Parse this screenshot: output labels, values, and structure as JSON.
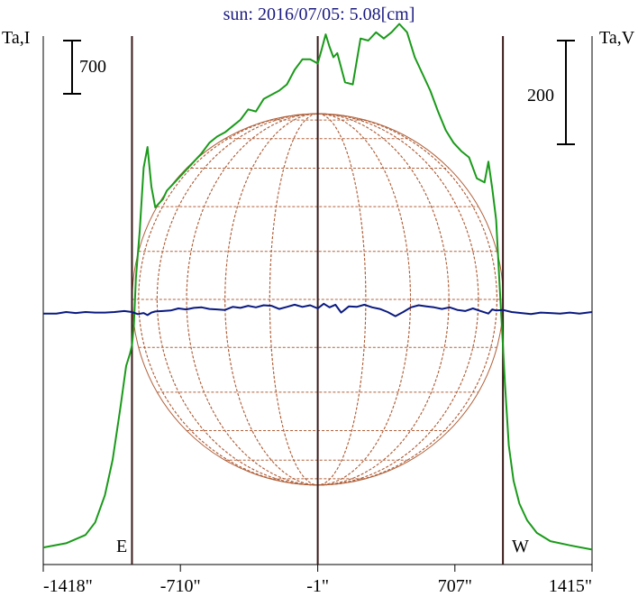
{
  "title": "sun: 2016/07/05: 5.08[cm]",
  "left_axis_label": "Ta,I",
  "right_axis_label": "Ta,V",
  "scale_left_label": "700",
  "scale_right_label": "200",
  "east_label": "E",
  "west_label": "W",
  "colors": {
    "intensity": "#1a9a1a",
    "polarization": "#0a1a80",
    "disk": "#b0603a",
    "limb_lines": "#3a1a1a",
    "title": "#1a1a80"
  },
  "chart_data": {
    "type": "line",
    "xlabel": "",
    "ylabel": "",
    "xlim": [
      -1418,
      1415
    ],
    "x_ticks": [
      {
        "value": -1418,
        "label": "-1418\""
      },
      {
        "value": -710,
        "label": "-710\""
      },
      {
        "value": -1,
        "label": "-1\""
      },
      {
        "value": 707,
        "label": "707\""
      },
      {
        "value": 1415,
        "label": "1415\""
      }
    ],
    "limbs": {
      "east": -960,
      "center": -1,
      "west": 955
    },
    "series": [
      {
        "key": "I",
        "x": [
          -1418,
          -1300,
          -1200,
          -1150,
          -1100,
          -1060,
          -1020,
          -990,
          -970,
          -960,
          -950,
          -940,
          -920,
          -900,
          -880,
          -860,
          -840,
          -820,
          -800,
          -780,
          -760,
          -720,
          -680,
          -640,
          -600,
          -560,
          -520,
          -480,
          -440,
          -400,
          -360,
          -320,
          -280,
          -240,
          -200,
          -160,
          -120,
          -80,
          -40,
          -1,
          20,
          40,
          60,
          80,
          100,
          140,
          180,
          220,
          260,
          300,
          340,
          380,
          420,
          460,
          500,
          540,
          580,
          620,
          660,
          700,
          740,
          780,
          820,
          860,
          880,
          900,
          920,
          940,
          955,
          965,
          985,
          1010,
          1040,
          1080,
          1130,
          1200,
          1300,
          1415
        ],
        "y": [
          0.03,
          0.05,
          0.09,
          0.15,
          0.28,
          0.45,
          0.7,
          0.9,
          0.96,
          1.0,
          1.1,
          1.32,
          1.55,
          1.85,
          1.95,
          1.76,
          1.66,
          1.68,
          1.7,
          1.74,
          1.76,
          1.8,
          1.84,
          1.88,
          1.92,
          1.97,
          2.0,
          2.02,
          2.05,
          2.08,
          2.13,
          2.12,
          2.18,
          2.2,
          2.22,
          2.25,
          2.32,
          2.37,
          2.37,
          2.35,
          2.42,
          2.49,
          2.43,
          2.38,
          2.4,
          2.26,
          2.25,
          2.47,
          2.46,
          2.5,
          2.47,
          2.5,
          2.54,
          2.5,
          2.38,
          2.3,
          2.22,
          2.12,
          2.03,
          1.97,
          1.93,
          1.9,
          1.8,
          1.78,
          1.88,
          1.75,
          1.6,
          1.25,
          1.0,
          0.82,
          0.52,
          0.35,
          0.24,
          0.16,
          0.1,
          0.06,
          0.04,
          0.02
        ]
      },
      {
        "key": "V",
        "x": [
          -1418,
          -1350,
          -1300,
          -1250,
          -1200,
          -1150,
          -1100,
          -1050,
          -1000,
          -960,
          -930,
          -900,
          -880,
          -860,
          -840,
          -800,
          -760,
          -720,
          -680,
          -640,
          -600,
          -560,
          -520,
          -480,
          -440,
          -400,
          -360,
          -320,
          -280,
          -240,
          -200,
          -160,
          -120,
          -80,
          -40,
          -1,
          30,
          60,
          90,
          120,
          160,
          200,
          240,
          280,
          320,
          360,
          400,
          440,
          480,
          520,
          560,
          600,
          640,
          680,
          720,
          760,
          800,
          840,
          880,
          900,
          920,
          955,
          1000,
          1050,
          1100,
          1150,
          1200,
          1250,
          1300,
          1350,
          1415
        ],
        "y": [
          -0.3,
          -0.3,
          0.0,
          -0.2,
          0.0,
          -0.1,
          -0.1,
          0.0,
          0.2,
          0.0,
          -0.4,
          -0.2,
          -0.6,
          -0.1,
          0.1,
          0.2,
          0.3,
          0.7,
          0.5,
          0.8,
          0.9,
          0.6,
          0.5,
          0.4,
          1.0,
          0.8,
          1.2,
          0.9,
          1.3,
          1.2,
          0.6,
          1.0,
          1.4,
          1.0,
          1.3,
          0.7,
          1.6,
          0.9,
          1.4,
          -0.1,
          1.1,
          1.0,
          1.4,
          0.9,
          0.6,
          0.0,
          -0.8,
          0.0,
          0.9,
          1.3,
          1.1,
          0.9,
          0.6,
          0.9,
          0.4,
          0.2,
          0.7,
          0.2,
          -0.3,
          0.5,
          0.3,
          0.4,
          0.0,
          -0.2,
          -0.4,
          -0.1,
          -0.2,
          -0.3,
          -0.1,
          -0.3,
          0.0
        ]
      }
    ],
    "scale_bars": {
      "left_value": 700,
      "right_value": 200
    }
  }
}
